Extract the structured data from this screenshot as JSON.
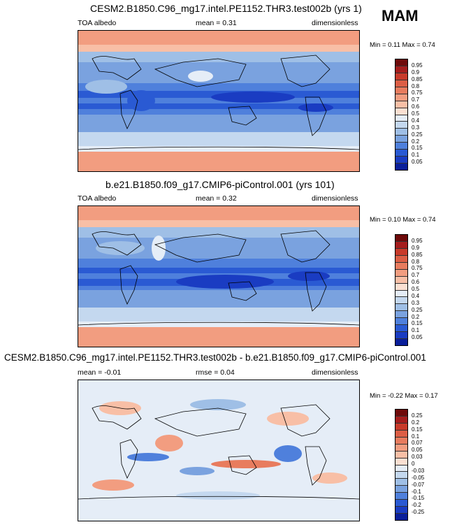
{
  "season": "MAM",
  "panels": [
    {
      "title": "CESM2.B1850.C96_mg17.intel.PE1152.THR3.test002b (yrs 1)",
      "left": "TOA albedo",
      "center": "mean =  0.31",
      "right": "dimensionless",
      "minmax": "Min =  0.11 Max =  0.74",
      "colorbar_labels": [
        "0.95",
        "0.9",
        "0.85",
        "0.8",
        "0.75",
        "0.7",
        "0.6",
        "0.5",
        "0.4",
        "0.3",
        "0.25",
        "0.2",
        "0.15",
        "0.1",
        "0.05"
      ],
      "colorbar_colors": [
        "#6e0a0a",
        "#a51d1d",
        "#c83a2a",
        "#dc5e45",
        "#e87c5e",
        "#f29d80",
        "#f8bfa6",
        "#fbe0d2",
        "#e5edf7",
        "#c4d8ef",
        "#9fbfe6",
        "#7aa2df",
        "#4f80dc",
        "#2a5ad3",
        "#1a3cc2",
        "#0a1f9a"
      ]
    },
    {
      "title": "b.e21.B1850.f09_g17.CMIP6-piControl.001 (yrs 101)",
      "left": "TOA albedo",
      "center": "mean =  0.32",
      "right": "dimensionless",
      "minmax": "Min =  0.10 Max =  0.74",
      "colorbar_labels": [
        "0.95",
        "0.9",
        "0.85",
        "0.8",
        "0.75",
        "0.7",
        "0.6",
        "0.5",
        "0.4",
        "0.3",
        "0.25",
        "0.2",
        "0.15",
        "0.1",
        "0.05"
      ],
      "colorbar_colors": [
        "#6e0a0a",
        "#a51d1d",
        "#c83a2a",
        "#dc5e45",
        "#e87c5e",
        "#f29d80",
        "#f8bfa6",
        "#fbe0d2",
        "#e5edf7",
        "#c4d8ef",
        "#9fbfe6",
        "#7aa2df",
        "#4f80dc",
        "#2a5ad3",
        "#1a3cc2",
        "#0a1f9a"
      ]
    },
    {
      "title": "CESM2.B1850.C96_mg17.intel.PE1152.THR3.test002b - b.e21.B1850.f09_g17.CMIP6-piControl.001",
      "left": "mean = -0.01",
      "center": "rmse =  0.04",
      "right": "dimensionless",
      "minmax": "Min = -0.22 Max =  0.17",
      "colorbar_labels": [
        "0.25",
        "0.2",
        "0.15",
        "0.1",
        "0.07",
        "0.05",
        "0.03",
        "0",
        "-0.03",
        "-0.05",
        "-0.07",
        "-0.1",
        "-0.15",
        "-0.2",
        "-0.25"
      ],
      "colorbar_colors": [
        "#6e0a0a",
        "#a51d1d",
        "#c83a2a",
        "#dc5e45",
        "#e87c5e",
        "#f29d80",
        "#f8bfa6",
        "#fbe0d2",
        "#e5edf7",
        "#c4d8ef",
        "#9fbfe6",
        "#7aa2df",
        "#4f80dc",
        "#2a5ad3",
        "#1a3cc2",
        "#0a1f9a"
      ]
    }
  ]
}
